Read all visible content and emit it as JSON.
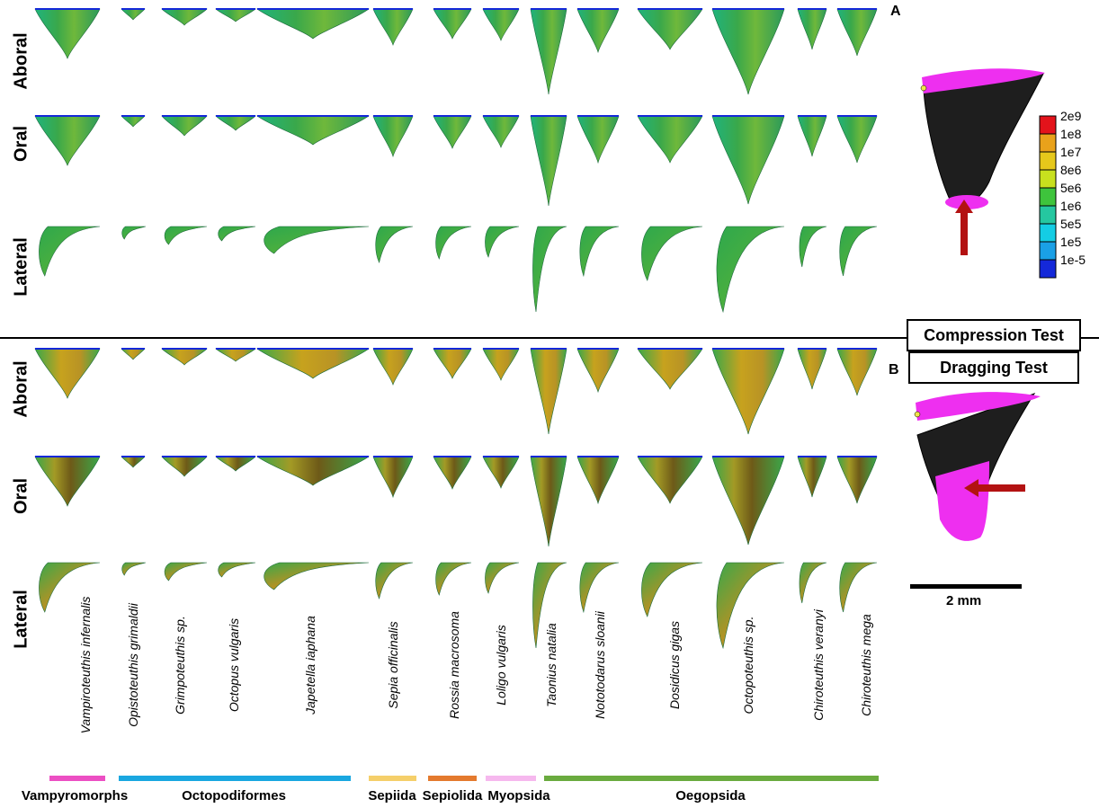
{
  "panels": {
    "a": {
      "letter": "A",
      "test": "Compression Test"
    },
    "b": {
      "letter": "B",
      "test": "Dragging Test"
    }
  },
  "row_labels": [
    "Aboral",
    "Oral",
    "Lateral"
  ],
  "species": [
    "Vampiroteuthis infernalis",
    "Opistoteuthis grimaldii",
    "Grimpoteuthis sp.",
    "Octopus vulgaris",
    "Japetella iaphana",
    "Sepia officinalis",
    "Rossia macrosoma",
    "Loligo vulgaris",
    "Taonius natalia",
    "Nototodarus sloanii",
    "Dosidicus gigas",
    "Octopoteuthis sp.",
    "Chiroteuthis veranyi",
    "Chiroteuthis mega"
  ],
  "groups": [
    {
      "name": "Vampyromorphs",
      "color": "#ec4fc3"
    },
    {
      "name": "Octopodiformes",
      "color": "#1aa7e0"
    },
    {
      "name": "Sepiida",
      "color": "#f5cf6a"
    },
    {
      "name": "Sepiolida",
      "color": "#e47a2e"
    },
    {
      "name": "Myopsida",
      "color": "#f6b8ee"
    },
    {
      "name": "Oegopsida",
      "color": "#6aab3f"
    }
  ],
  "legend": {
    "labels": [
      "2e9",
      "1e8",
      "1e7",
      "8e6",
      "5e6",
      "1e6",
      "5e5",
      "1e5",
      "1e-5"
    ],
    "colors": [
      "#e3131b",
      "#e9a21b",
      "#e6c81b",
      "#c8e01e",
      "#3ec43c",
      "#25c7a0",
      "#14cde4",
      "#1aa0e6",
      "#1428d9"
    ]
  },
  "scale_bar": "2 mm",
  "colors": {
    "model_mesh": "#1e1e1e",
    "constraint": "#ee2ff0",
    "arrow": "#b31212",
    "stress_green": "#3aa84a",
    "stress_yellow": "#c7a21e"
  }
}
